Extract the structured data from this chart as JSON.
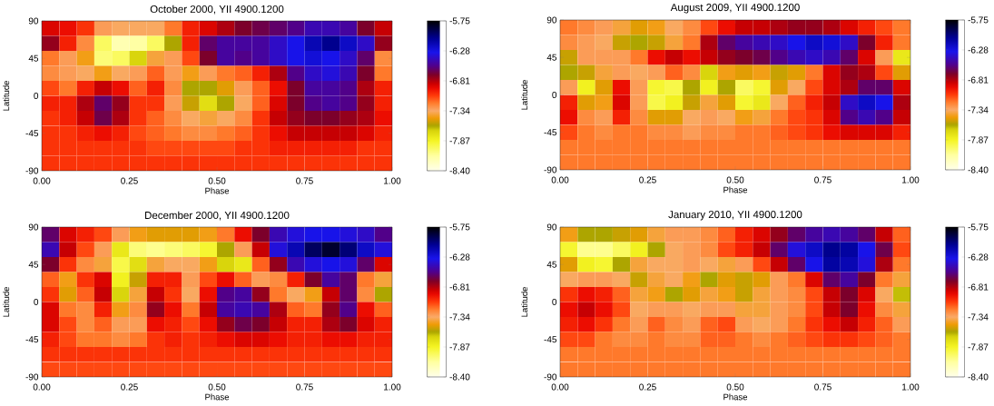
{
  "chart_data": [
    {
      "type": "heatmap",
      "title": "October 2000, YII 4900.1200",
      "xlabel": "Phase",
      "ylabel": "Latitude",
      "xlim": [
        0,
        1
      ],
      "xticks": [
        {
          "value": 0,
          "label": "0.00"
        },
        {
          "value": 0.25,
          "label": "0.25"
        },
        {
          "value": 0.5,
          "label": "0.50"
        },
        {
          "value": 0.75,
          "label": "0.75"
        },
        {
          "value": 1,
          "label": "1.00"
        }
      ],
      "ylim": [
        -90,
        90
      ],
      "yticks": [
        -90,
        -45,
        0,
        45,
        90
      ],
      "clim": [
        -8.4,
        -5.75
      ],
      "cticks": [
        {
          "value": -8.4,
          "label": "-8.40"
        },
        {
          "value": -7.87,
          "label": "-7.87"
        },
        {
          "value": -7.34,
          "label": "-7.34"
        },
        {
          "value": -6.81,
          "label": "-6.81"
        },
        {
          "value": -6.28,
          "label": "-6.28"
        },
        {
          "value": -5.75,
          "label": "-5.75"
        }
      ],
      "cells": [
        [
          -6.9,
          -6.95,
          -7.05,
          -7.3,
          -7.35,
          -7.35,
          -7.35,
          -7.2,
          -7.0,
          -6.9,
          -6.8,
          -6.7,
          -6.65,
          -6.6,
          -6.55,
          -6.45,
          -6.45,
          -6.5,
          -6.7,
          -6.85
        ],
        [
          -6.75,
          -7.0,
          -7.25,
          -8.0,
          -8.2,
          -8.15,
          -8.0,
          -7.6,
          -7.0,
          -6.6,
          -6.5,
          -6.5,
          -6.5,
          -6.4,
          -6.3,
          -6.15,
          -6.05,
          -6.2,
          -6.4,
          -6.75
        ],
        [
          -7.2,
          -7.3,
          -7.45,
          -8.05,
          -8.0,
          -7.7,
          -7.4,
          -7.3,
          -7.1,
          -6.7,
          -6.5,
          -6.55,
          -6.5,
          -6.4,
          -6.3,
          -6.25,
          -6.3,
          -6.4,
          -6.6,
          -7.25
        ],
        [
          -7.25,
          -7.3,
          -7.35,
          -7.45,
          -7.35,
          -7.3,
          -7.15,
          -7.3,
          -7.45,
          -7.3,
          -7.2,
          -7.15,
          -7.0,
          -6.8,
          -6.55,
          -6.4,
          -6.35,
          -6.45,
          -6.7,
          -7.2
        ],
        [
          -7.1,
          -7.2,
          -7.0,
          -6.85,
          -6.95,
          -7.15,
          -7.0,
          -7.25,
          -7.6,
          -7.6,
          -7.5,
          -7.3,
          -7.15,
          -6.95,
          -6.7,
          -6.5,
          -6.5,
          -6.55,
          -6.8,
          -7.0
        ],
        [
          -7.0,
          -7.0,
          -6.8,
          -6.6,
          -6.75,
          -7.05,
          -7.05,
          -7.3,
          -7.55,
          -7.75,
          -7.6,
          -7.35,
          -7.15,
          -6.9,
          -6.7,
          -6.55,
          -6.5,
          -6.55,
          -6.75,
          -7.0
        ],
        [
          -7.05,
          -7.0,
          -6.85,
          -6.65,
          -6.8,
          -7.05,
          -7.15,
          -7.25,
          -7.35,
          -7.4,
          -7.35,
          -7.25,
          -7.05,
          -6.85,
          -6.75,
          -6.7,
          -6.7,
          -6.75,
          -6.8,
          -6.95
        ],
        [
          -7.05,
          -7.05,
          -7.0,
          -6.95,
          -7.0,
          -7.1,
          -7.15,
          -7.2,
          -7.25,
          -7.25,
          -7.2,
          -7.15,
          -7.05,
          -6.95,
          -6.85,
          -6.85,
          -6.85,
          -6.85,
          -6.9,
          -7.0
        ],
        [
          -7.05,
          -7.05,
          -7.05,
          -7.05,
          -7.05,
          -7.05,
          -7.1,
          -7.1,
          -7.1,
          -7.1,
          -7.1,
          -7.05,
          -7.05,
          -7.0,
          -7.0,
          -7.0,
          -7.0,
          -7.0,
          -7.05,
          -7.05
        ],
        [
          -7.05,
          -7.05,
          -7.05,
          -7.05,
          -7.05,
          -7.05,
          -7.05,
          -7.05,
          -7.05,
          -7.05,
          -7.05,
          -7.05,
          -7.05,
          -7.05,
          -7.05,
          -7.05,
          -7.05,
          -7.05,
          -7.05,
          -7.05
        ]
      ]
    },
    {
      "type": "heatmap",
      "title": "August 2009, YII 4900.1200",
      "xlabel": "Phase",
      "ylabel": "Latitude",
      "xlim": [
        0,
        1
      ],
      "xticks": [
        {
          "value": 0,
          "label": "0.00"
        },
        {
          "value": 0.25,
          "label": "0.25"
        },
        {
          "value": 0.5,
          "label": "0.50"
        },
        {
          "value": 0.75,
          "label": "0.75"
        },
        {
          "value": 1,
          "label": "1.00"
        }
      ],
      "ylim": [
        -90,
        90
      ],
      "yticks": [
        -90,
        -45,
        0,
        45,
        90
      ],
      "clim": [
        -8.4,
        -5.75
      ],
      "cticks": [
        {
          "value": -8.4,
          "label": "-8.40"
        },
        {
          "value": -7.87,
          "label": "-7.87"
        },
        {
          "value": -7.34,
          "label": "-7.34"
        },
        {
          "value": -6.81,
          "label": "-6.81"
        },
        {
          "value": -6.28,
          "label": "-6.28"
        },
        {
          "value": -5.75,
          "label": "-5.75"
        }
      ],
      "cells": [
        [
          -7.2,
          -7.25,
          -7.3,
          -7.4,
          -7.5,
          -7.45,
          -7.35,
          -7.25,
          -7.1,
          -6.95,
          -6.85,
          -6.85,
          -6.8,
          -6.75,
          -6.75,
          -6.8,
          -6.9,
          -7.0,
          -7.1,
          -7.2
        ],
        [
          -7.25,
          -7.3,
          -7.35,
          -7.55,
          -7.6,
          -7.55,
          -7.4,
          -7.2,
          -6.8,
          -6.6,
          -6.5,
          -6.45,
          -6.4,
          -6.3,
          -6.2,
          -6.25,
          -6.4,
          -6.7,
          -7.0,
          -7.2
        ],
        [
          -7.55,
          -7.3,
          -7.3,
          -7.3,
          -7.2,
          -6.95,
          -6.85,
          -6.95,
          -6.85,
          -6.75,
          -6.7,
          -6.65,
          -6.55,
          -6.45,
          -6.4,
          -6.45,
          -6.6,
          -6.9,
          -7.3,
          -7.8
        ],
        [
          -7.6,
          -7.55,
          -7.4,
          -7.3,
          -7.35,
          -7.3,
          -7.15,
          -7.25,
          -7.7,
          -7.45,
          -7.5,
          -7.45,
          -7.55,
          -7.5,
          -7.2,
          -6.9,
          -6.75,
          -6.8,
          -7.1,
          -7.5
        ],
        [
          -7.3,
          -7.85,
          -7.5,
          -6.95,
          -7.3,
          -7.9,
          -7.95,
          -7.6,
          -7.85,
          -7.6,
          -8.0,
          -7.9,
          -7.5,
          -7.35,
          -7.1,
          -6.9,
          -6.8,
          -6.6,
          -6.6,
          -6.9
        ],
        [
          -7.0,
          -7.5,
          -7.45,
          -6.9,
          -7.3,
          -7.95,
          -7.85,
          -7.55,
          -7.4,
          -7.5,
          -7.9,
          -7.8,
          -7.35,
          -7.15,
          -7.0,
          -6.85,
          -6.4,
          -6.2,
          -6.3,
          -6.8
        ],
        [
          -6.95,
          -7.25,
          -7.3,
          -7.0,
          -7.25,
          -7.5,
          -7.5,
          -7.35,
          -7.3,
          -7.35,
          -7.45,
          -7.4,
          -7.2,
          -7.1,
          -7.05,
          -6.9,
          -6.55,
          -6.45,
          -6.55,
          -6.85
        ],
        [
          -7.1,
          -7.2,
          -7.25,
          -7.2,
          -7.2,
          -7.25,
          -7.25,
          -7.3,
          -7.25,
          -7.25,
          -7.2,
          -7.2,
          -7.15,
          -7.1,
          -7.05,
          -6.95,
          -6.9,
          -6.9,
          -6.9,
          -7.0
        ],
        [
          -7.2,
          -7.2,
          -7.2,
          -7.2,
          -7.2,
          -7.2,
          -7.2,
          -7.2,
          -7.2,
          -7.2,
          -7.2,
          -7.2,
          -7.2,
          -7.2,
          -7.2,
          -7.2,
          -7.2,
          -7.2,
          -7.2,
          -7.2
        ],
        [
          -7.2,
          -7.2,
          -7.2,
          -7.2,
          -7.2,
          -7.2,
          -7.2,
          -7.2,
          -7.2,
          -7.2,
          -7.2,
          -7.2,
          -7.2,
          -7.2,
          -7.2,
          -7.2,
          -7.2,
          -7.2,
          -7.2,
          -7.2
        ]
      ]
    },
    {
      "type": "heatmap",
      "title": "December 2000, YII 4900.1200",
      "xlabel": "Phase",
      "ylabel": "Latitude",
      "xlim": [
        0,
        1
      ],
      "xticks": [
        {
          "value": 0,
          "label": "0.00"
        },
        {
          "value": 0.25,
          "label": "0.25"
        },
        {
          "value": 0.5,
          "label": "0.50"
        },
        {
          "value": 0.75,
          "label": "0.75"
        },
        {
          "value": 1,
          "label": "1.00"
        }
      ],
      "ylim": [
        -90,
        90
      ],
      "yticks": [
        -90,
        -45,
        0,
        45,
        90
      ],
      "clim": [
        -8.4,
        -5.75
      ],
      "cticks": [
        {
          "value": -8.4,
          "label": "-8.40"
        },
        {
          "value": -7.87,
          "label": "-7.87"
        },
        {
          "value": -7.34,
          "label": "-7.34"
        },
        {
          "value": -6.81,
          "label": "-6.81"
        },
        {
          "value": -6.28,
          "label": "-6.28"
        },
        {
          "value": -5.75,
          "label": "-5.75"
        }
      ],
      "cells": [
        [
          -6.6,
          -6.9,
          -7.0,
          -7.1,
          -7.3,
          -7.45,
          -7.5,
          -7.5,
          -7.5,
          -7.45,
          -7.2,
          -6.95,
          -6.7,
          -6.45,
          -6.35,
          -6.3,
          -6.3,
          -6.35,
          -6.4,
          -6.55
        ],
        [
          -6.45,
          -6.85,
          -7.1,
          -7.3,
          -7.8,
          -8.05,
          -8.1,
          -8.05,
          -8.0,
          -7.9,
          -7.6,
          -7.3,
          -6.85,
          -6.35,
          -6.15,
          -5.95,
          -5.85,
          -6.0,
          -6.2,
          -6.35
        ],
        [
          -6.7,
          -7.05,
          -7.25,
          -7.4,
          -7.95,
          -7.75,
          -7.4,
          -7.35,
          -7.35,
          -7.45,
          -7.7,
          -7.8,
          -7.15,
          -6.75,
          -6.45,
          -6.35,
          -6.3,
          -6.35,
          -6.6,
          -6.9
        ],
        [
          -7.15,
          -7.45,
          -7.05,
          -6.9,
          -7.85,
          -7.55,
          -7.0,
          -7.0,
          -7.3,
          -7.1,
          -6.95,
          -7.15,
          -7.3,
          -7.25,
          -7.0,
          -6.7,
          -6.5,
          -6.6,
          -7.2,
          -7.4
        ],
        [
          -7.05,
          -7.5,
          -7.15,
          -6.85,
          -7.7,
          -7.4,
          -6.85,
          -7.05,
          -7.35,
          -6.95,
          -6.55,
          -6.5,
          -6.75,
          -7.2,
          -7.35,
          -7.45,
          -6.85,
          -6.6,
          -7.25,
          -7.6
        ],
        [
          -6.9,
          -7.2,
          -7.25,
          -7.0,
          -7.45,
          -7.25,
          -6.75,
          -6.95,
          -7.2,
          -6.85,
          -6.5,
          -6.45,
          -6.5,
          -6.8,
          -7.15,
          -7.2,
          -6.75,
          -6.55,
          -6.95,
          -7.15
        ],
        [
          -6.9,
          -7.1,
          -7.25,
          -7.15,
          -7.3,
          -7.3,
          -6.95,
          -7.0,
          -7.1,
          -6.95,
          -6.75,
          -6.65,
          -6.7,
          -6.85,
          -7.0,
          -7.0,
          -6.8,
          -6.7,
          -6.9,
          -7.0
        ],
        [
          -7.0,
          -7.1,
          -7.2,
          -7.2,
          -7.25,
          -7.2,
          -7.05,
          -7.0,
          -7.05,
          -7.0,
          -6.95,
          -6.9,
          -6.9,
          -6.95,
          -7.0,
          -7.0,
          -6.95,
          -6.95,
          -7.0,
          -7.0
        ],
        [
          -7.05,
          -7.05,
          -7.05,
          -7.05,
          -7.05,
          -7.05,
          -7.05,
          -7.05,
          -7.05,
          -7.05,
          -7.05,
          -7.05,
          -7.05,
          -7.05,
          -7.05,
          -7.05,
          -7.05,
          -7.05,
          -7.05,
          -7.05
        ],
        [
          -7.1,
          -7.1,
          -7.1,
          -7.1,
          -7.1,
          -7.1,
          -7.1,
          -7.1,
          -7.1,
          -7.1,
          -7.1,
          -7.1,
          -7.1,
          -7.1,
          -7.1,
          -7.1,
          -7.1,
          -7.1,
          -7.1,
          -7.1
        ]
      ]
    },
    {
      "type": "heatmap",
      "title": "January 2010, YII 4900.1200",
      "xlabel": "Phase",
      "ylabel": "Latitude",
      "xlim": [
        0,
        1
      ],
      "xticks": [
        {
          "value": 0,
          "label": "0.00"
        },
        {
          "value": 0.25,
          "label": "0.25"
        },
        {
          "value": 0.5,
          "label": "0.50"
        },
        {
          "value": 0.75,
          "label": "0.75"
        },
        {
          "value": 1,
          "label": "1.00"
        }
      ],
      "ylim": [
        -90,
        90
      ],
      "yticks": [
        -90,
        -45,
        0,
        45,
        90
      ],
      "clim": [
        -8.4,
        -5.75
      ],
      "cticks": [
        {
          "value": -8.4,
          "label": "-8.40"
        },
        {
          "value": -7.87,
          "label": "-7.87"
        },
        {
          "value": -7.34,
          "label": "-7.34"
        },
        {
          "value": -6.81,
          "label": "-6.81"
        },
        {
          "value": -6.28,
          "label": "-6.28"
        },
        {
          "value": -5.75,
          "label": "-5.75"
        }
      ],
      "cells": [
        [
          -7.45,
          -7.6,
          -7.6,
          -7.55,
          -7.5,
          -7.4,
          -7.3,
          -7.3,
          -7.25,
          -7.15,
          -7.0,
          -6.9,
          -6.75,
          -6.6,
          -6.5,
          -6.45,
          -6.5,
          -6.6,
          -6.85,
          -7.15
        ],
        [
          -7.9,
          -8.1,
          -8.1,
          -8.0,
          -7.85,
          -7.6,
          -7.35,
          -7.3,
          -7.25,
          -7.1,
          -7.0,
          -6.85,
          -6.6,
          -6.35,
          -6.2,
          -6.05,
          -6.1,
          -6.3,
          -6.65,
          -7.1
        ],
        [
          -7.5,
          -7.85,
          -7.9,
          -7.6,
          -7.4,
          -7.35,
          -7.35,
          -7.3,
          -7.35,
          -7.4,
          -7.3,
          -7.1,
          -6.85,
          -6.6,
          -6.3,
          -6.1,
          -6.15,
          -6.35,
          -6.8,
          -7.2
        ],
        [
          -7.35,
          -7.3,
          -7.3,
          -7.35,
          -7.55,
          -7.4,
          -7.35,
          -7.45,
          -7.6,
          -7.5,
          -7.55,
          -7.5,
          -7.3,
          -7.2,
          -6.9,
          -6.6,
          -6.5,
          -6.7,
          -7.2,
          -7.4
        ],
        [
          -7.05,
          -6.95,
          -7.0,
          -7.15,
          -7.4,
          -7.45,
          -7.6,
          -7.5,
          -7.4,
          -7.45,
          -7.55,
          -7.4,
          -7.3,
          -7.25,
          -7.1,
          -6.85,
          -6.7,
          -6.9,
          -7.35,
          -7.65
        ],
        [
          -6.95,
          -6.85,
          -6.95,
          -7.1,
          -7.35,
          -7.3,
          -7.3,
          -7.35,
          -7.3,
          -7.3,
          -7.4,
          -7.4,
          -7.3,
          -7.25,
          -7.1,
          -6.85,
          -6.7,
          -6.95,
          -7.25,
          -7.4
        ],
        [
          -7.0,
          -6.95,
          -7.05,
          -7.2,
          -7.3,
          -7.15,
          -7.25,
          -7.3,
          -7.15,
          -7.1,
          -7.3,
          -7.35,
          -7.3,
          -7.2,
          -7.05,
          -6.95,
          -6.85,
          -7.0,
          -7.15,
          -7.3
        ],
        [
          -7.1,
          -7.1,
          -7.2,
          -7.25,
          -7.25,
          -7.2,
          -7.25,
          -7.25,
          -7.15,
          -7.15,
          -7.2,
          -7.25,
          -7.2,
          -7.15,
          -7.1,
          -7.05,
          -7.05,
          -7.1,
          -7.15,
          -7.2
        ],
        [
          -7.2,
          -7.2,
          -7.2,
          -7.2,
          -7.2,
          -7.2,
          -7.2,
          -7.2,
          -7.2,
          -7.2,
          -7.2,
          -7.2,
          -7.2,
          -7.2,
          -7.2,
          -7.2,
          -7.2,
          -7.2,
          -7.2,
          -7.2
        ],
        [
          -7.2,
          -7.2,
          -7.2,
          -7.2,
          -7.2,
          -7.2,
          -7.2,
          -7.2,
          -7.2,
          -7.2,
          -7.2,
          -7.2,
          -7.2,
          -7.2,
          -7.2,
          -7.2,
          -7.2,
          -7.2,
          -7.2,
          -7.2
        ]
      ]
    }
  ]
}
